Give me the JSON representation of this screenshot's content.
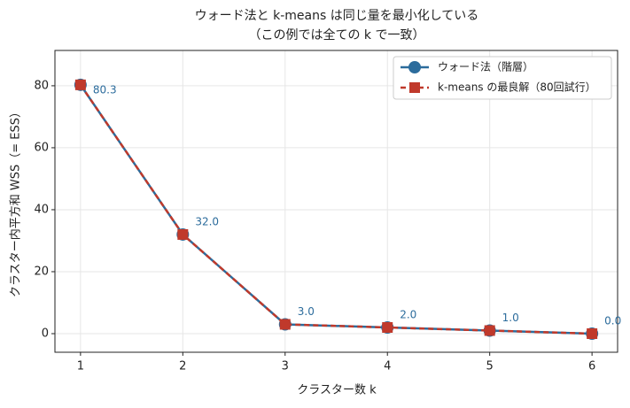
{
  "chart_data": {
    "type": "line",
    "title": [
      "ウォード法と k-means は同じ量を最小化している",
      "（この例では全ての k で一致）"
    ],
    "xlabel": "クラスター数 k",
    "ylabel": "クラスター内平方和 WSS（= ESS）",
    "x": [
      1,
      2,
      3,
      4,
      5,
      6
    ],
    "series": [
      {
        "name": "ウォード法（階層）",
        "color": "#2c6c9c",
        "marker": "circle",
        "linestyle": "solid",
        "values": [
          80.3,
          32.0,
          3.0,
          2.0,
          1.0,
          0.0
        ],
        "value_labels": [
          "80.3",
          "32.0",
          "3.0",
          "2.0",
          "1.0",
          "0.0"
        ]
      },
      {
        "name": "k-means の最良解（80回試行）",
        "color": "#c0392b",
        "marker": "square",
        "linestyle": "dashed",
        "values": [
          80.3,
          32.0,
          3.0,
          2.0,
          1.0,
          0.0
        ]
      }
    ],
    "xlim": [
      0.75,
      6.25
    ],
    "xticks": [
      1,
      2,
      3,
      4,
      5,
      6
    ],
    "ylim": [
      -6,
      91.4
    ],
    "yticks": [
      0,
      20,
      40,
      60,
      80
    ],
    "grid": true,
    "legend": "upper right"
  }
}
